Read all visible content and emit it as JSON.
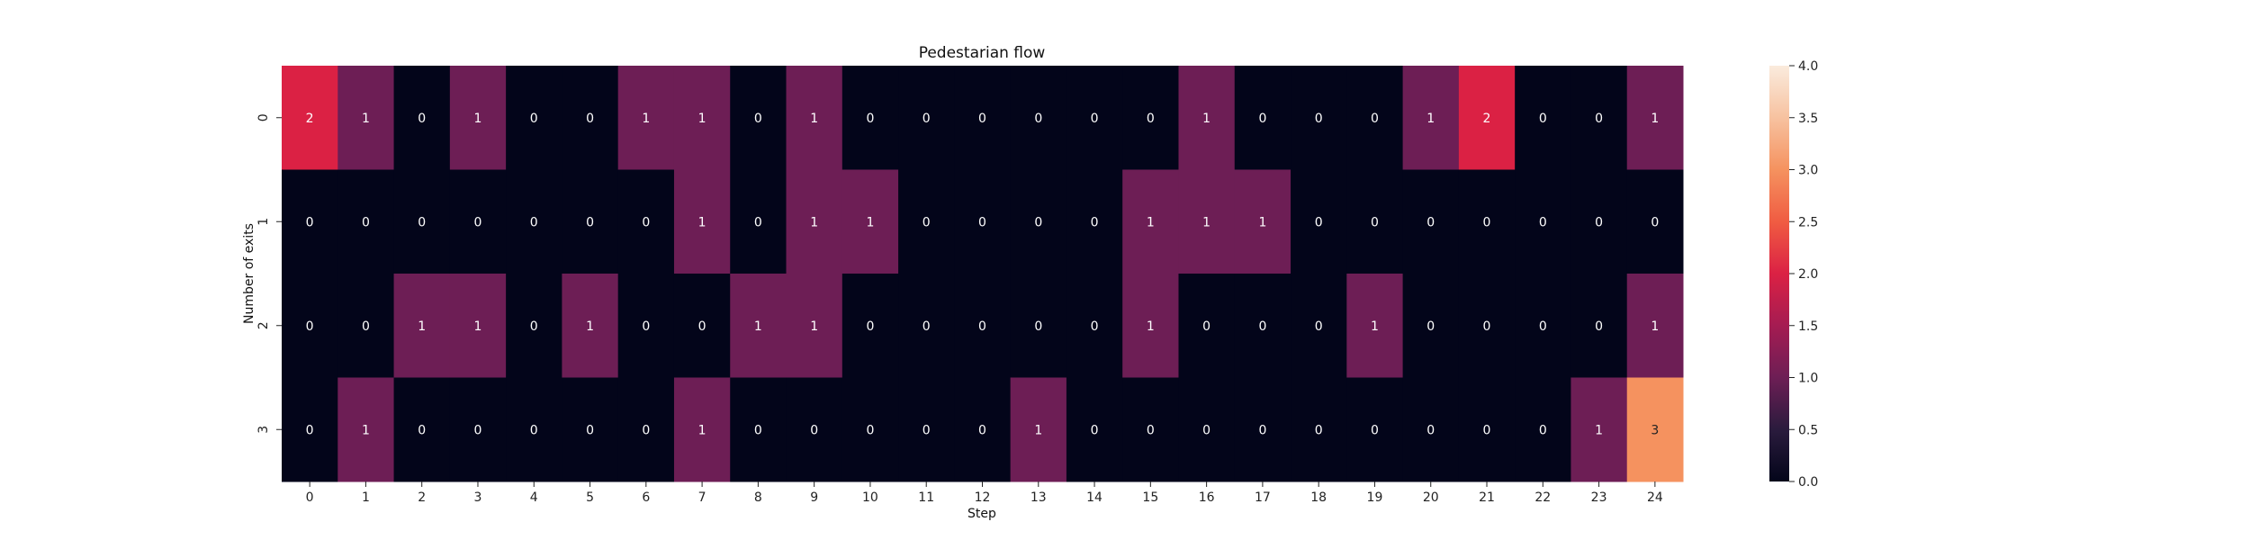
{
  "chart_data": {
    "type": "heatmap",
    "title": "Pedestarian flow",
    "xlabel": "Step",
    "ylabel": "Number of exits",
    "x_categories": [
      "0",
      "1",
      "2",
      "3",
      "4",
      "5",
      "6",
      "7",
      "8",
      "9",
      "10",
      "11",
      "12",
      "13",
      "14",
      "15",
      "16",
      "17",
      "18",
      "19",
      "20",
      "21",
      "22",
      "23",
      "24"
    ],
    "y_categories": [
      "0",
      "1",
      "2",
      "3"
    ],
    "values": [
      [
        2,
        1,
        0,
        1,
        0,
        0,
        1,
        1,
        0,
        1,
        0,
        0,
        0,
        0,
        0,
        0,
        1,
        0,
        0,
        0,
        1,
        2,
        0,
        0,
        1
      ],
      [
        0,
        0,
        0,
        0,
        0,
        0,
        0,
        1,
        0,
        1,
        1,
        0,
        0,
        0,
        0,
        1,
        1,
        1,
        0,
        0,
        0,
        0,
        0,
        0,
        0
      ],
      [
        0,
        0,
        1,
        1,
        0,
        1,
        0,
        0,
        1,
        1,
        0,
        0,
        0,
        0,
        0,
        1,
        0,
        0,
        0,
        1,
        0,
        0,
        0,
        0,
        1
      ],
      [
        0,
        1,
        0,
        0,
        0,
        0,
        0,
        1,
        0,
        0,
        0,
        0,
        0,
        1,
        0,
        0,
        0,
        0,
        0,
        0,
        0,
        0,
        0,
        1,
        3
      ]
    ],
    "colorbar": {
      "range": [
        0,
        4
      ],
      "ticks": [
        "0.0",
        "0.5",
        "1.0",
        "1.5",
        "2.0",
        "2.5",
        "3.0",
        "3.5",
        "4.0"
      ],
      "colormap": "rocket"
    },
    "annotations": true,
    "grid": false
  }
}
